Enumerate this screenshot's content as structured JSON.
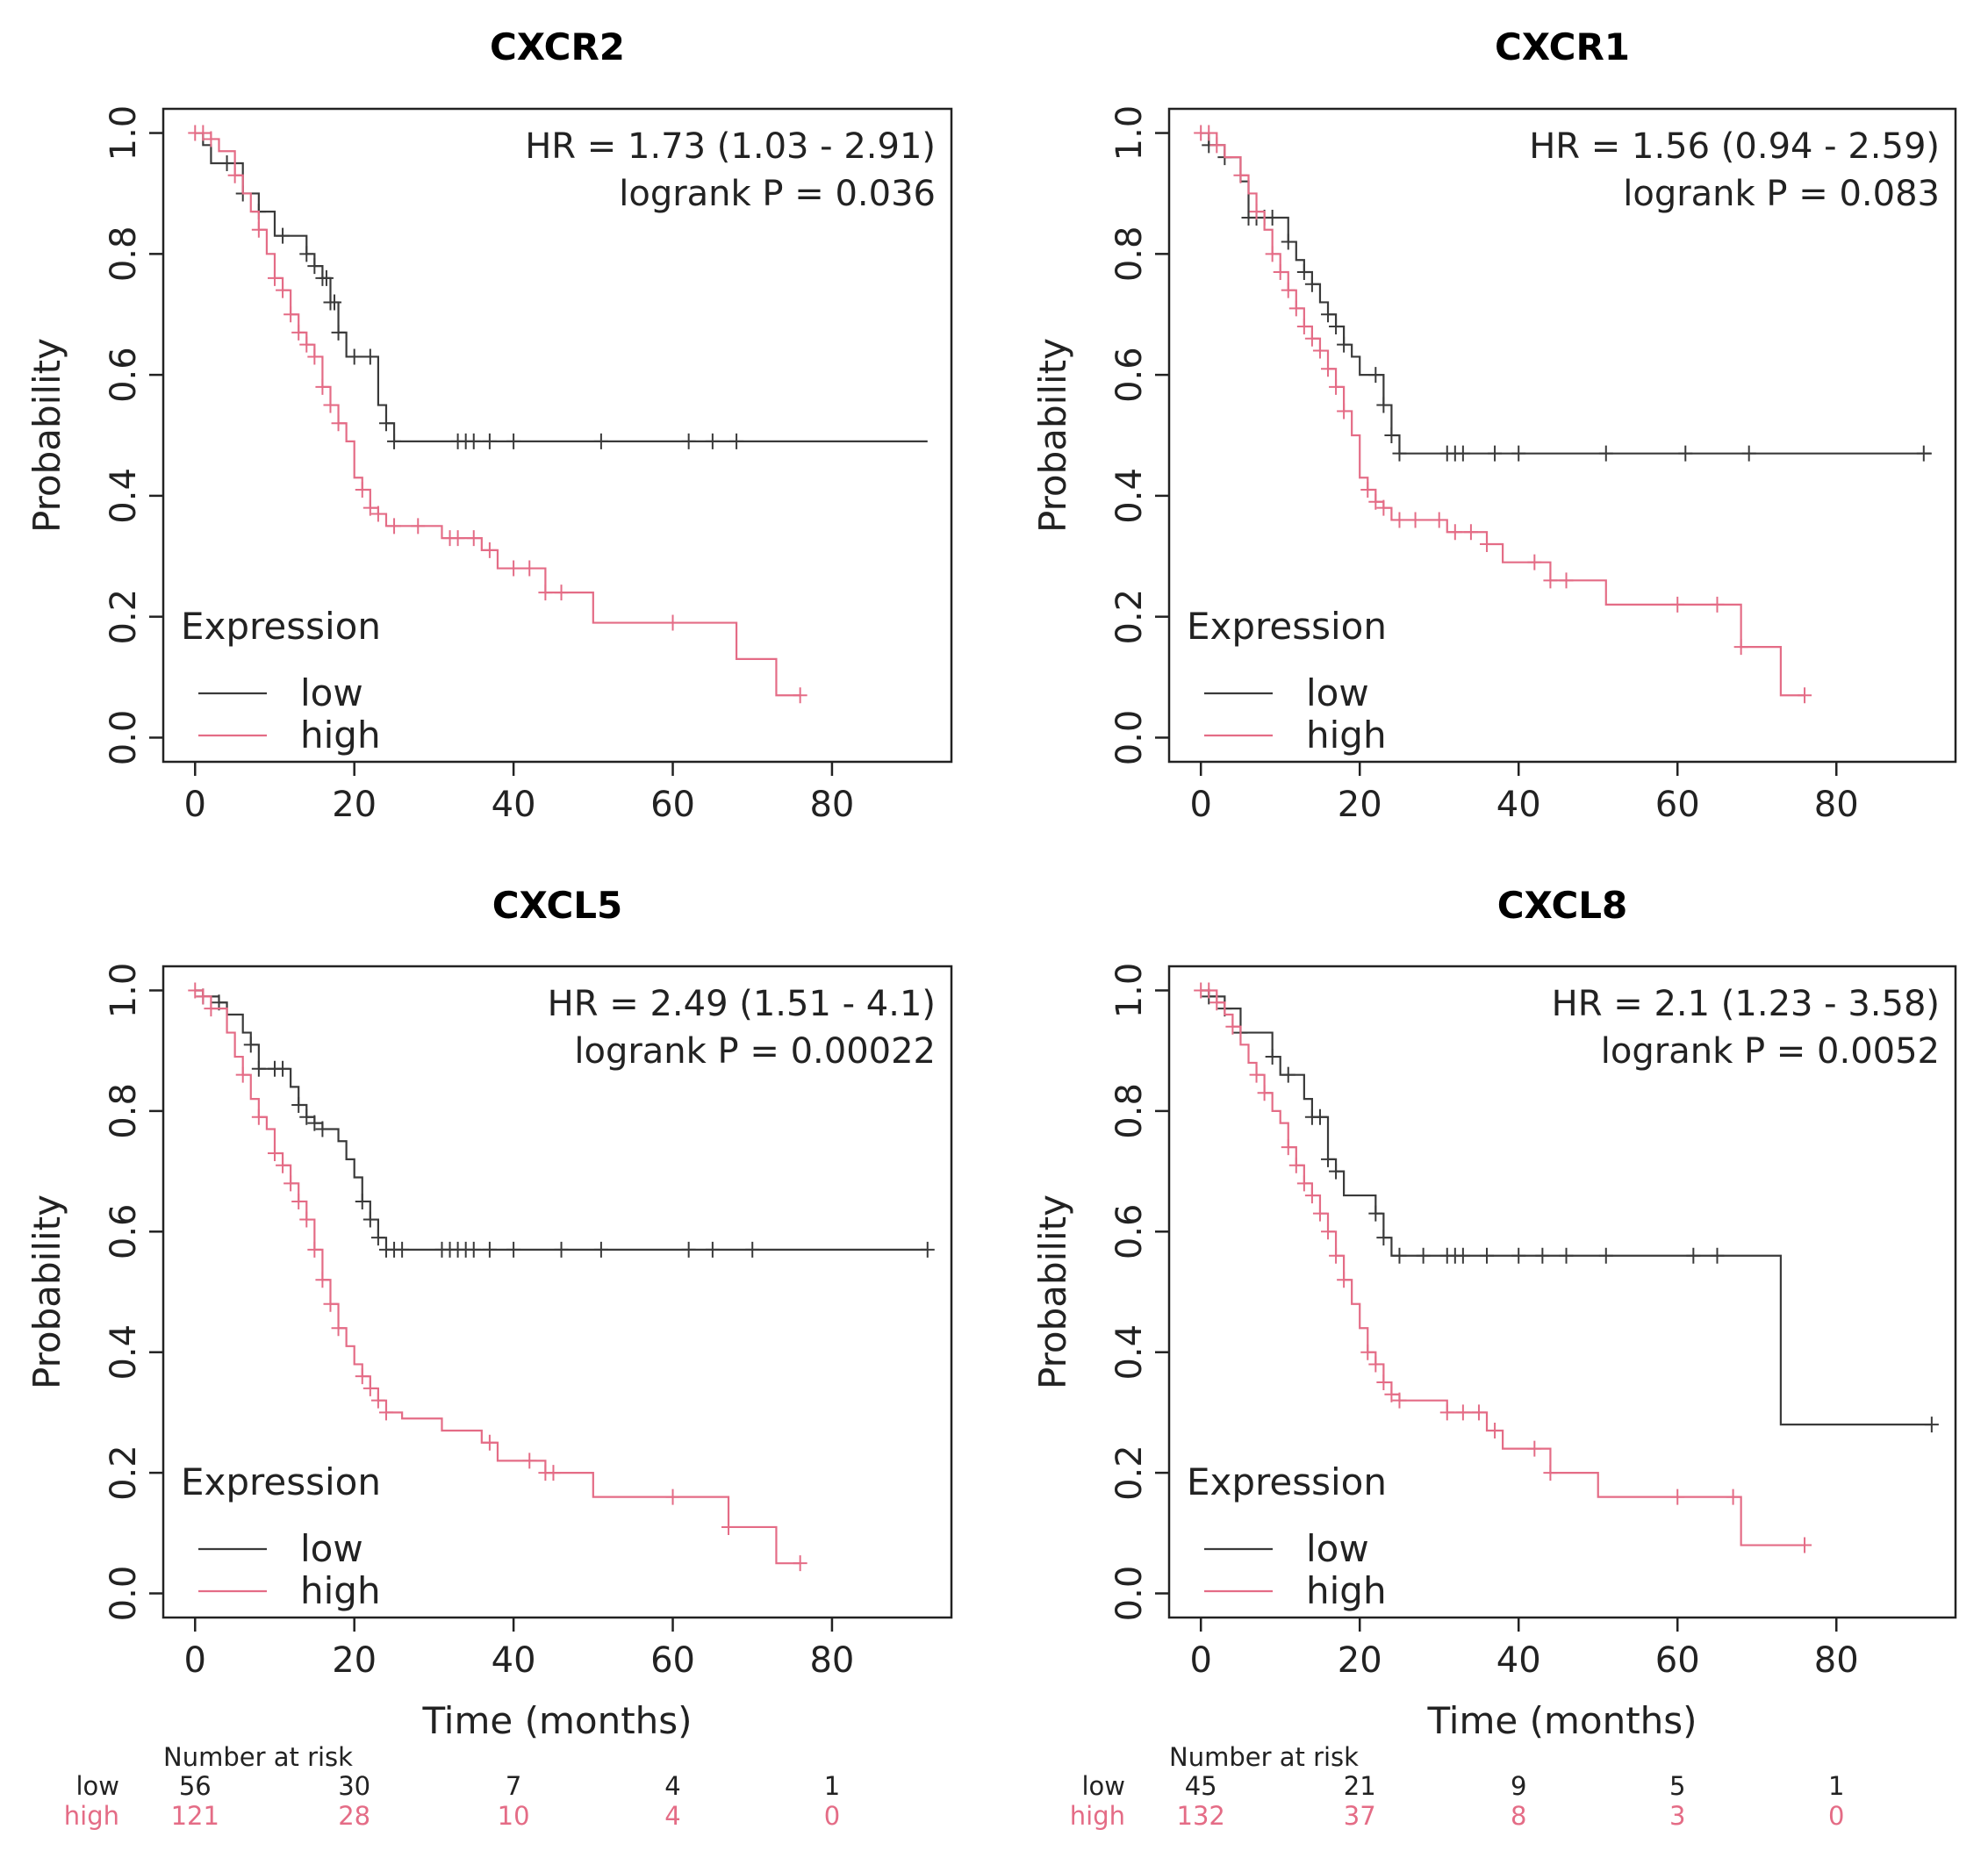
{
  "colors": {
    "low": "#3a3a3a",
    "high": "#e46c86"
  },
  "chart_data": [
    {
      "type": "line",
      "title": "CXCR2",
      "xlabel": "",
      "ylabel": "Probability",
      "xlim": [
        -4,
        95
      ],
      "ylim": [
        -0.04,
        1.04
      ],
      "xticks": [
        "0",
        "20",
        "40",
        "60",
        "80"
      ],
      "yticks": [
        "0.0",
        "0.2",
        "0.4",
        "0.6",
        "0.8",
        "1.0"
      ],
      "hr_text": "HR = 1.73 (1.03 - 2.91)",
      "p_text": "logrank P = 0.036",
      "legend": {
        "title": "Expression",
        "low": "low",
        "high": "high",
        "position": "bottom-left"
      },
      "series": [
        {
          "name": "low",
          "x": [
            0,
            1,
            2,
            4,
            6,
            8,
            10,
            12,
            13,
            14,
            15,
            16,
            17,
            18,
            19,
            21,
            23,
            24,
            25,
            92
          ],
          "y": [
            1.0,
            0.98,
            0.95,
            0.95,
            0.9,
            0.87,
            0.83,
            0.83,
            0.83,
            0.8,
            0.78,
            0.76,
            0.72,
            0.67,
            0.63,
            0.63,
            0.55,
            0.52,
            0.49,
            0.49
          ],
          "censor": [
            4,
            6,
            8,
            11,
            14,
            15,
            16,
            16.5,
            17,
            17.5,
            18,
            20,
            22,
            24,
            25,
            33,
            34,
            35,
            37,
            40,
            51,
            62,
            65,
            68
          ]
        },
        {
          "name": "high",
          "x": [
            0,
            2,
            3,
            5,
            6,
            7,
            8,
            9,
            10,
            11,
            12,
            13,
            14,
            15,
            16,
            17,
            18,
            19,
            20,
            21,
            22,
            23,
            24,
            26,
            31,
            36,
            38,
            44,
            50,
            68,
            73,
            76
          ],
          "y": [
            1.0,
            0.99,
            0.97,
            0.93,
            0.9,
            0.87,
            0.84,
            0.8,
            0.76,
            0.74,
            0.7,
            0.67,
            0.65,
            0.63,
            0.58,
            0.55,
            0.52,
            0.49,
            0.43,
            0.41,
            0.38,
            0.37,
            0.35,
            0.35,
            0.33,
            0.31,
            0.28,
            0.24,
            0.19,
            0.13,
            0.07,
            0.07
          ],
          "censor": [
            0,
            1,
            2,
            5,
            8,
            10,
            11,
            12,
            13,
            14,
            15,
            16,
            17,
            18,
            21,
            22,
            23,
            25,
            28,
            32,
            33,
            35,
            37,
            40,
            42,
            44,
            46,
            60,
            76
          ]
        }
      ]
    },
    {
      "type": "line",
      "title": "CXCR1",
      "xlabel": "",
      "ylabel": "Probability",
      "xlim": [
        -4,
        95
      ],
      "ylim": [
        -0.04,
        1.04
      ],
      "xticks": [
        "0",
        "20",
        "40",
        "60",
        "80"
      ],
      "yticks": [
        "0.0",
        "0.2",
        "0.4",
        "0.6",
        "0.8",
        "1.0"
      ],
      "hr_text": "HR = 1.56 (0.94 - 2.59)",
      "p_text": "logrank P = 0.083",
      "legend": {
        "title": "Expression",
        "low": "low",
        "high": "high",
        "position": "bottom-left"
      },
      "series": [
        {
          "name": "low",
          "x": [
            0,
            1,
            3,
            5,
            6,
            8,
            10,
            11,
            12,
            13,
            14,
            15,
            16,
            17,
            18,
            19,
            20,
            22,
            23,
            24,
            25,
            92
          ],
          "y": [
            1.0,
            0.98,
            0.96,
            0.92,
            0.86,
            0.86,
            0.86,
            0.82,
            0.79,
            0.77,
            0.75,
            0.72,
            0.7,
            0.68,
            0.65,
            0.63,
            0.6,
            0.6,
            0.55,
            0.5,
            0.47,
            0.47
          ],
          "censor": [
            1,
            3,
            6,
            7,
            8,
            9,
            11,
            13,
            14,
            16,
            17,
            18,
            22,
            23,
            24,
            25,
            31,
            32,
            33,
            37,
            40,
            51,
            61,
            69,
            91
          ]
        },
        {
          "name": "high",
          "x": [
            0,
            2,
            3,
            5,
            6,
            7,
            8,
            9,
            10,
            11,
            12,
            13,
            14,
            15,
            16,
            17,
            18,
            19,
            20,
            21,
            22,
            23,
            24,
            26,
            31,
            36,
            38,
            44,
            51,
            68,
            73,
            76
          ],
          "y": [
            1.0,
            0.98,
            0.96,
            0.93,
            0.9,
            0.87,
            0.84,
            0.8,
            0.77,
            0.74,
            0.71,
            0.68,
            0.66,
            0.64,
            0.61,
            0.58,
            0.54,
            0.5,
            0.43,
            0.41,
            0.39,
            0.38,
            0.36,
            0.36,
            0.34,
            0.32,
            0.29,
            0.26,
            0.22,
            0.15,
            0.07,
            0.07
          ],
          "censor": [
            0,
            1,
            2,
            5,
            7,
            9,
            10,
            11,
            12,
            13,
            14,
            15,
            16,
            17,
            18,
            21,
            22,
            23,
            25,
            27,
            30,
            32,
            34,
            36,
            42,
            44,
            46,
            60,
            65,
            68,
            76
          ]
        }
      ]
    },
    {
      "type": "line",
      "title": "CXCL5",
      "xlabel": "Time (months)",
      "ylabel": "Probability",
      "xlim": [
        -4,
        95
      ],
      "ylim": [
        -0.04,
        1.04
      ],
      "xticks": [
        "0",
        "20",
        "40",
        "60",
        "80"
      ],
      "yticks": [
        "0.0",
        "0.2",
        "0.4",
        "0.6",
        "0.8",
        "1.0"
      ],
      "hr_text": "HR = 2.49 (1.51 - 4.1)",
      "p_text": "logrank P = 0.00022",
      "legend": {
        "title": "Expression",
        "low": "low",
        "high": "high",
        "position": "bottom-left"
      },
      "series": [
        {
          "name": "low",
          "x": [
            0,
            1,
            3,
            4,
            6,
            7,
            8,
            9,
            12,
            13,
            14,
            15,
            16,
            17,
            18,
            19,
            20,
            21,
            22,
            23,
            24,
            92
          ],
          "y": [
            1.0,
            0.99,
            0.98,
            0.96,
            0.93,
            0.91,
            0.87,
            0.87,
            0.84,
            0.81,
            0.79,
            0.78,
            0.77,
            0.77,
            0.75,
            0.72,
            0.69,
            0.65,
            0.62,
            0.59,
            0.57,
            0.57
          ],
          "censor": [
            1,
            3,
            7,
            8,
            10,
            11,
            13,
            14,
            15,
            16,
            21,
            22,
            23,
            24,
            25,
            26,
            31,
            32,
            33,
            34,
            35,
            37,
            40,
            46,
            51,
            62,
            65,
            70,
            92
          ]
        },
        {
          "name": "high",
          "x": [
            0,
            1,
            2,
            4,
            5,
            6,
            7,
            8,
            9,
            10,
            11,
            12,
            13,
            14,
            15,
            16,
            17,
            18,
            19,
            20,
            21,
            22,
            23,
            24,
            26,
            31,
            36,
            38,
            44,
            50,
            67,
            73,
            76
          ],
          "y": [
            1.0,
            0.99,
            0.97,
            0.93,
            0.89,
            0.86,
            0.82,
            0.79,
            0.77,
            0.73,
            0.71,
            0.68,
            0.65,
            0.62,
            0.57,
            0.52,
            0.48,
            0.44,
            0.41,
            0.38,
            0.36,
            0.34,
            0.32,
            0.3,
            0.29,
            0.27,
            0.25,
            0.22,
            0.2,
            0.16,
            0.11,
            0.05,
            0.05
          ],
          "censor": [
            0,
            1,
            2,
            6,
            8,
            10,
            11,
            12,
            13,
            14,
            15,
            16,
            17,
            18,
            21,
            22,
            23,
            24,
            37,
            42,
            44,
            45,
            60,
            67,
            76
          ]
        }
      ]
    },
    {
      "type": "line",
      "title": "CXCL8",
      "xlabel": "Time (months)",
      "ylabel": "Probability",
      "xlim": [
        -4,
        95
      ],
      "ylim": [
        -0.04,
        1.04
      ],
      "xticks": [
        "0",
        "20",
        "40",
        "60",
        "80"
      ],
      "yticks": [
        "0.0",
        "0.2",
        "0.4",
        "0.6",
        "0.8",
        "1.0"
      ],
      "hr_text": "HR = 2.1 (1.23 - 3.58)",
      "p_text": "logrank P = 0.0052",
      "legend": {
        "title": "Expression",
        "low": "low",
        "high": "high",
        "position": "bottom-left"
      },
      "series": [
        {
          "name": "low",
          "x": [
            0,
            1,
            3,
            5,
            8,
            9,
            10,
            11,
            12,
            13,
            14,
            15,
            16,
            17,
            18,
            22,
            23,
            24,
            73,
            92
          ],
          "y": [
            1.0,
            0.99,
            0.97,
            0.93,
            0.93,
            0.89,
            0.86,
            0.86,
            0.86,
            0.82,
            0.79,
            0.79,
            0.72,
            0.7,
            0.66,
            0.63,
            0.59,
            0.56,
            0.28,
            0.28
          ],
          "censor": [
            1,
            3,
            5,
            9,
            11,
            14,
            15,
            16,
            17,
            22,
            23,
            25,
            28,
            31,
            32,
            33,
            36,
            40,
            43,
            46,
            51,
            62,
            65,
            92
          ]
        },
        {
          "name": "high",
          "x": [
            0,
            2,
            3,
            4,
            5,
            6,
            7,
            8,
            9,
            10,
            11,
            12,
            13,
            14,
            15,
            16,
            17,
            18,
            19,
            20,
            21,
            22,
            23,
            24,
            25,
            31,
            36,
            38,
            44,
            50,
            68,
            76
          ],
          "y": [
            1.0,
            0.98,
            0.96,
            0.94,
            0.91,
            0.88,
            0.86,
            0.83,
            0.8,
            0.78,
            0.74,
            0.71,
            0.68,
            0.66,
            0.63,
            0.6,
            0.56,
            0.52,
            0.48,
            0.44,
            0.4,
            0.38,
            0.35,
            0.33,
            0.32,
            0.3,
            0.27,
            0.24,
            0.2,
            0.16,
            0.08,
            0.08
          ],
          "censor": [
            0,
            1,
            2,
            4,
            7,
            8,
            11,
            12,
            13,
            14,
            15,
            16,
            17,
            18,
            21,
            22,
            23,
            24,
            25,
            31,
            33,
            35,
            37,
            42,
            44,
            60,
            67,
            76
          ]
        }
      ]
    }
  ],
  "risk_tables": [
    {
      "title": "Number at risk",
      "rows": [
        {
          "label": "low",
          "group": "low",
          "values": [
            "56",
            "30",
            "7",
            "4",
            "1"
          ]
        },
        {
          "label": "high",
          "group": "high",
          "values": [
            "121",
            "28",
            "10",
            "4",
            "0"
          ]
        }
      ]
    },
    {
      "title": "Number at risk",
      "rows": [
        {
          "label": "low",
          "group": "low",
          "values": [
            "45",
            "21",
            "9",
            "5",
            "1"
          ]
        },
        {
          "label": "high",
          "group": "high",
          "values": [
            "132",
            "37",
            "8",
            "3",
            "0"
          ]
        }
      ]
    }
  ]
}
